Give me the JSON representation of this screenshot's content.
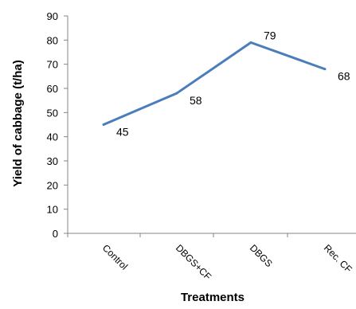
{
  "chart_data": {
    "type": "line",
    "categories": [
      "Control",
      "DBGS+CF",
      "DBGS",
      "Rec. CF"
    ],
    "series": [
      {
        "values": [
          45,
          58,
          79,
          68
        ],
        "color": "#4a7ebb"
      }
    ],
    "data_labels": [
      "45",
      "58",
      "79",
      "68"
    ],
    "xlabel": "Treatments",
    "ylabel": "Yield of cabbage (t/ha)",
    "ylim": [
      0,
      90
    ],
    "yticks": [
      0,
      10,
      20,
      30,
      40,
      50,
      60,
      70,
      80,
      90
    ],
    "grid": false,
    "legend": "none"
  }
}
